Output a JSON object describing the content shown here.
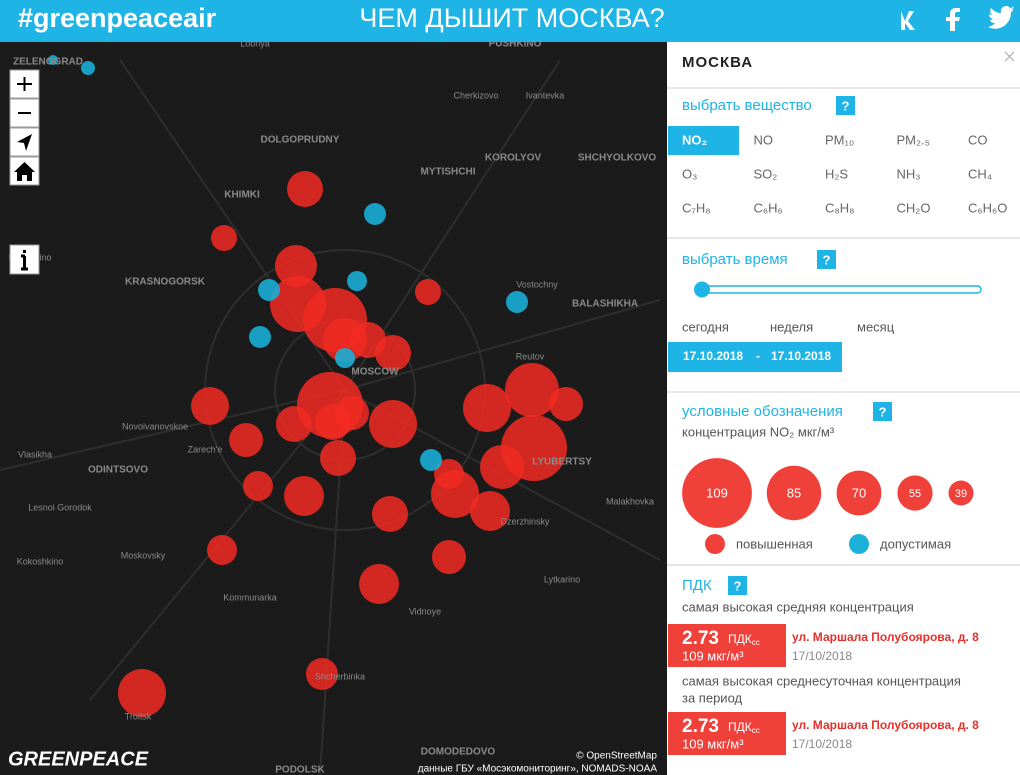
{
  "header": {
    "title": "#greenpeaceair",
    "subtitle": "ЧЕМ ДЫШИТ МОСКВА?"
  },
  "map": {
    "labels": [
      "Lobnya",
      "ZELENOGRAD",
      "PUSHKINO",
      "Cherkizovo",
      "Ivantevka",
      "DOLGOPRUDNY",
      "KOROLYOV",
      "SHCHYOLKOVO",
      "MYTISHCHI",
      "KHIMKI",
      "Nakhabino",
      "KRASNOGORSK",
      "Vostochny",
      "BALASHIKHA",
      "Reutov",
      "MOSCOW",
      "Novoivanovskoe",
      "Zarech'e",
      "Vlasikha",
      "ODINTSOVO",
      "LYUBERTSY",
      "Lesnoi Gorodok",
      "Malakhovka",
      "Dzerzhinsky",
      "Moskovsky",
      "Kokoshkino",
      "Lytkarino",
      "Kommunarka",
      "Vidnoye",
      "Shcherbinka",
      "Troitsk",
      "DOMODEDOVO",
      "PODOLSK"
    ],
    "logo": "GREENPEACE",
    "attribution": [
      "© OpenStreetMap",
      "данные ГБУ «Мосэкомониторинг», NOMADS-NOAA"
    ]
  },
  "panel": {
    "city": "МОСКВА",
    "substance": {
      "heading": "выбрать вещество",
      "help": "?",
      "selected": 0,
      "options": [
        "NO₂",
        "NO",
        "PM₁₀",
        "PM₂.₅",
        "CO",
        "O₃",
        "SO₂",
        "H₂S",
        "NH₃",
        "CH₄",
        "C₇H₈",
        "C₆H₆",
        "C₈H₈",
        "CH₂O",
        "C₆H₆O"
      ]
    },
    "time": {
      "heading": "выбрать время",
      "help": "?",
      "options": [
        "сегодня",
        "неделя",
        "месяц"
      ],
      "date_from": "17.10.2018",
      "separator": "-",
      "date_to": "17.10.2018"
    },
    "legend": {
      "heading": "условные обозначения",
      "help": "?",
      "caption": "концентрация NO₂ мкг/м³",
      "sizes": [
        109,
        85,
        70,
        55,
        39
      ],
      "items": [
        {
          "label": "повышенная",
          "color": "#f0403a"
        },
        {
          "label": "допустимая",
          "color": "#1ab0d8"
        }
      ]
    },
    "pdk": {
      "heading": "ПДК",
      "help": "?",
      "records": [
        {
          "caption": [
            "самая высокая средняя концентрация"
          ],
          "value": 2.73,
          "unit": "ПДК",
          "unit_sub": "сс",
          "concentration": "109 мкг/м³",
          "address": "ул. Маршала Полубоярова, д. 8",
          "date": "17/10/2018"
        },
        {
          "caption": [
            "самая высокая среднесуточная концентрация",
            "за период"
          ],
          "value": 2.73,
          "unit": "ПДК",
          "unit_sub": "сс",
          "concentration": "109 мкг/м³",
          "address": "ул. Маршала Полубоярова, д. 8",
          "date": "17/10/2018"
        }
      ]
    }
  }
}
